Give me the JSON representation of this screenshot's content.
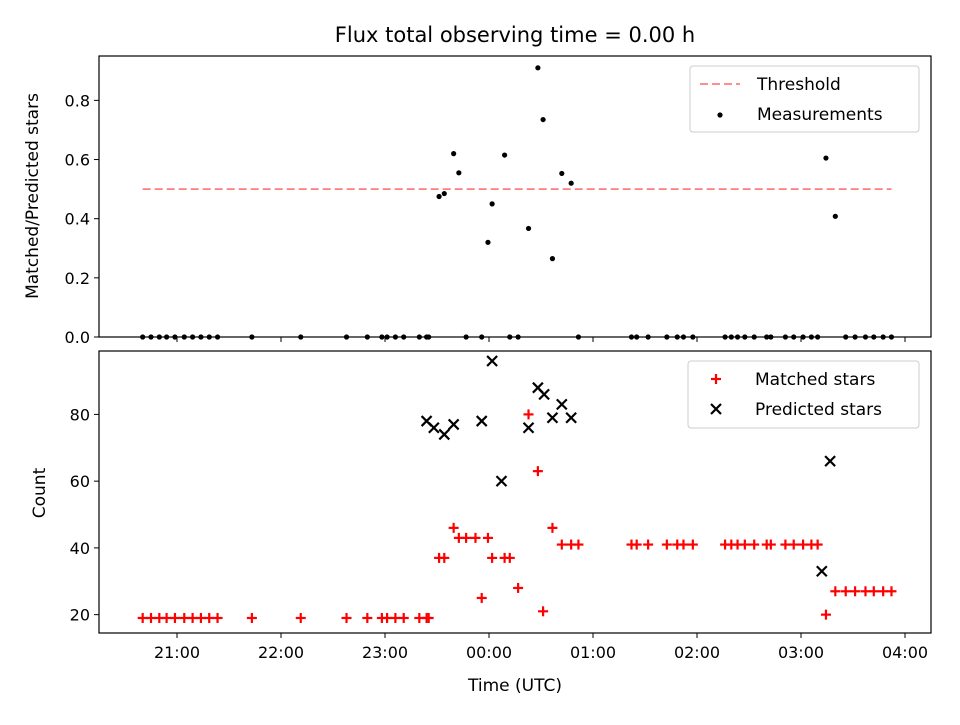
{
  "chart_data": [
    {
      "type": "scatter",
      "title": "Flux total observing time = 0.00 h",
      "xlabel": "",
      "ylabel": "Matched/Predicted stars",
      "ylim": [
        0,
        0.95
      ],
      "yticks": [
        0.0,
        0.2,
        0.4,
        0.6,
        0.8
      ],
      "ytick_labels": [
        "0.0",
        "0.2",
        "0.4",
        "0.6",
        "0.8"
      ],
      "xlim": [
        20.25,
        28.25
      ],
      "xticks": [
        21,
        22,
        23,
        24,
        25,
        26,
        27,
        28
      ],
      "legend": "top-right",
      "threshold": {
        "name": "Threshold",
        "value": 0.5,
        "x_range": [
          20.67,
          27.87
        ],
        "color": "#ff7f7f"
      },
      "series": [
        {
          "name": "Measurements",
          "color": "#000000",
          "x": [
            20.67,
            20.75,
            20.83,
            20.9,
            20.98,
            21.07,
            21.15,
            21.23,
            21.31,
            21.39,
            21.72,
            22.19,
            22.63,
            22.83,
            22.97,
            23.02,
            23.1,
            23.18,
            23.33,
            23.4,
            23.42,
            23.52,
            23.57,
            23.66,
            23.71,
            23.78,
            23.93,
            23.99,
            24.03,
            24.15,
            24.2,
            24.28,
            24.38,
            24.47,
            24.52,
            24.61,
            24.7,
            24.79,
            24.86,
            25.37,
            25.42,
            25.53,
            25.71,
            25.81,
            25.87,
            25.96,
            26.27,
            26.33,
            26.39,
            26.46,
            26.55,
            26.67,
            26.71,
            26.85,
            26.93,
            27.02,
            27.1,
            27.16,
            27.24,
            27.33,
            27.43,
            27.52,
            27.62,
            27.7,
            27.79,
            27.87
          ],
          "values": [
            0,
            0,
            0,
            0,
            0,
            0,
            0,
            0,
            0,
            0,
            0,
            0,
            0,
            0,
            0,
            0,
            0,
            0,
            0,
            0,
            0,
            0.475,
            0.485,
            0.62,
            0.555,
            0,
            0,
            0.32,
            0.45,
            0.615,
            0,
            0,
            0.367,
            0.91,
            0.735,
            0.265,
            0.553,
            0.52,
            0,
            0,
            0,
            0,
            0,
            0,
            0,
            0,
            0,
            0,
            0,
            0,
            0,
            0,
            0,
            0,
            0,
            0,
            0,
            0,
            0.605,
            0.408,
            0,
            0,
            0,
            0,
            0,
            0
          ]
        }
      ]
    },
    {
      "type": "scatter",
      "title": "",
      "xlabel": "Time (UTC)",
      "ylabel": "Count",
      "ylim": [
        14.5,
        99
      ],
      "yticks": [
        20,
        40,
        60,
        80
      ],
      "ytick_labels": [
        "20",
        "40",
        "60",
        "80"
      ],
      "xlim": [
        20.25,
        28.25
      ],
      "xticks": [
        21,
        22,
        23,
        24,
        25,
        26,
        27,
        28
      ],
      "xtick_labels": [
        "21:00",
        "22:00",
        "23:00",
        "00:00",
        "01:00",
        "02:00",
        "03:00",
        "04:00"
      ],
      "legend": "top-right",
      "series": [
        {
          "name": "Matched stars",
          "marker": "+",
          "color": "#ff0000",
          "x": [
            20.67,
            20.75,
            20.83,
            20.9,
            20.98,
            21.07,
            21.15,
            21.23,
            21.31,
            21.39,
            21.72,
            22.19,
            22.63,
            22.83,
            22.97,
            23.02,
            23.1,
            23.18,
            23.33,
            23.4,
            23.42,
            23.52,
            23.57,
            23.66,
            23.71,
            23.78,
            23.87,
            23.93,
            23.99,
            24.03,
            24.15,
            24.2,
            24.28,
            24.38,
            24.47,
            24.52,
            24.61,
            24.7,
            24.79,
            24.86,
            25.37,
            25.42,
            25.53,
            25.71,
            25.81,
            25.87,
            25.96,
            26.27,
            26.33,
            26.39,
            26.46,
            26.55,
            26.67,
            26.71,
            26.85,
            26.93,
            27.02,
            27.1,
            27.16,
            27.24,
            27.33,
            27.43,
            27.52,
            27.62,
            27.7,
            27.79,
            27.87
          ],
          "values": [
            19,
            19,
            19,
            19,
            19,
            19,
            19,
            19,
            19,
            19,
            19,
            19,
            19,
            19,
            19,
            19,
            19,
            19,
            19,
            19,
            19,
            37,
            37,
            46,
            43,
            43,
            43,
            25,
            43,
            37,
            37,
            37,
            28,
            80,
            63,
            21,
            46,
            41,
            41,
            41,
            41,
            41,
            41,
            41,
            41,
            41,
            41,
            41,
            41,
            41,
            41,
            41,
            41,
            41,
            41,
            41,
            41,
            41,
            41,
            20,
            27,
            27,
            27,
            27,
            27,
            27,
            27
          ]
        },
        {
          "name": "Predicted stars",
          "marker": "x",
          "color": "#000000",
          "x": [
            23.4,
            23.47,
            23.57,
            23.66,
            23.93,
            24.03,
            24.12,
            24.38,
            24.47,
            24.53,
            24.61,
            24.7,
            24.79,
            27.2,
            27.28
          ],
          "values": [
            78,
            76,
            74,
            77,
            78,
            96,
            60,
            76,
            88,
            86,
            79,
            83,
            79,
            33,
            66
          ]
        }
      ]
    }
  ]
}
